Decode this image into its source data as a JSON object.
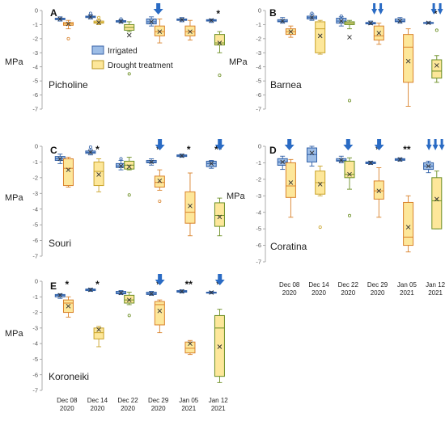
{
  "chart_data": {
    "type": "box",
    "y_label": "MPa",
    "y_ticks": [
      0,
      -1,
      -2,
      -3,
      -4,
      -5,
      -6,
      -7
    ],
    "ylim": [
      -7,
      0
    ],
    "dates": [
      {
        "line1": "Dec 08",
        "line2": "2020"
      },
      {
        "line1": "Dec 14",
        "line2": "2020"
      },
      {
        "line1": "Dec 22",
        "line2": "2020"
      },
      {
        "line1": "Dec 29",
        "line2": "2020"
      },
      {
        "line1": "Jan 05",
        "line2": "2021"
      },
      {
        "line1": "Jan 12",
        "line2": "2021"
      }
    ],
    "legend": [
      {
        "label": "Irrigated",
        "color": "#9dbde6",
        "stroke": "#3a63a8"
      },
      {
        "label": "Drought treatment",
        "color": "#fde79a",
        "stroke": "#b8951f"
      }
    ],
    "colors": {
      "irrigated_fill": "#9dbde6",
      "irrigated_stroke": "#2f5fa7",
      "drought_fill": "#fde79a",
      "drought_stroke_1": "#d9822b",
      "drought_stroke_2": "#c9a227",
      "drought_stroke_3": "#6b8e23",
      "arrow": "#2a6bc4"
    },
    "panels": [
      {
        "letter": "A",
        "name": "Picholine",
        "series": {
          "irrigated": [
            {
              "min": -0.75,
              "q1": -0.65,
              "median": -0.6,
              "q3": -0.55,
              "max": -0.45,
              "mean": -0.6,
              "outliers": []
            },
            {
              "min": -0.6,
              "q1": -0.5,
              "median": -0.45,
              "q3": -0.4,
              "max": -0.3,
              "mean": -0.45,
              "outliers": [
                -0.2
              ]
            },
            {
              "min": -0.9,
              "q1": -0.82,
              "median": -0.78,
              "q3": -0.72,
              "max": -0.65,
              "mean": -0.78,
              "outliers": [
                -0.6
              ]
            },
            {
              "min": -1.1,
              "q1": -0.95,
              "median": -0.8,
              "q3": -0.6,
              "max": -0.45,
              "mean": -0.8,
              "outliers": []
            },
            {
              "min": -0.8,
              "q1": -0.7,
              "median": -0.65,
              "q3": -0.6,
              "max": -0.5,
              "mean": -0.65,
              "outliers": []
            },
            {
              "min": -0.85,
              "q1": -0.75,
              "median": -0.7,
              "q3": -0.65,
              "max": -0.6,
              "mean": -0.7,
              "outliers": []
            }
          ],
          "drought": [
            {
              "min": -1.3,
              "q1": -1.05,
              "median": -0.95,
              "q3": -0.85,
              "max": -0.7,
              "mean": -0.95,
              "outliers": [
                -2.0
              ]
            },
            {
              "min": -1.0,
              "q1": -0.9,
              "median": -0.85,
              "q3": -0.75,
              "max": -0.65,
              "mean": -0.85,
              "outliers": [
                -0.5
              ]
            },
            {
              "min": -1.5,
              "q1": -1.4,
              "median": -1.2,
              "q3": -1.0,
              "max": -0.8,
              "mean": -1.75,
              "outliers": [
                -4.5
              ]
            },
            {
              "min": -2.3,
              "q1": -1.8,
              "median": -1.5,
              "q3": -1.1,
              "max": -0.6,
              "mean": -1.5,
              "outliers": []
            },
            {
              "min": -2.1,
              "q1": -1.8,
              "median": -1.5,
              "q3": -1.1,
              "max": -0.7,
              "mean": -1.5,
              "outliers": []
            },
            {
              "min": -3.0,
              "q1": -2.45,
              "median": -2.3,
              "q3": -1.7,
              "max": -1.5,
              "mean": -2.3,
              "outliers": [
                -4.6
              ]
            }
          ]
        },
        "stars": [
          "",
          "",
          "",
          "",
          "",
          "*"
        ],
        "arrows": [
          0,
          0,
          0,
          1,
          0,
          0
        ]
      },
      {
        "letter": "B",
        "name": "Barnea",
        "series": {
          "irrigated": [
            {
              "min": -0.9,
              "q1": -0.8,
              "median": -0.75,
              "q3": -0.65,
              "max": -0.5,
              "mean": -0.75,
              "outliers": []
            },
            {
              "min": -0.7,
              "q1": -0.6,
              "median": -0.5,
              "q3": -0.4,
              "max": -0.25,
              "mean": -0.5,
              "outliers": [
                -0.2
              ]
            },
            {
              "min": -1.1,
              "q1": -0.9,
              "median": -0.75,
              "q3": -0.55,
              "max": -0.45,
              "mean": -0.75,
              "outliers": [
                -0.4
              ]
            },
            {
              "min": -1.0,
              "q1": -0.95,
              "median": -0.9,
              "q3": -0.85,
              "max": -0.75,
              "mean": -0.9,
              "outliers": []
            },
            {
              "min": -0.9,
              "q1": -0.8,
              "median": -0.75,
              "q3": -0.6,
              "max": -0.5,
              "mean": -0.75,
              "outliers": []
            },
            {
              "min": -0.95,
              "q1": -0.9,
              "median": -0.88,
              "q3": -0.85,
              "max": -0.8,
              "mean": -0.88,
              "outliers": []
            }
          ],
          "drought": [
            {
              "min": -1.9,
              "q1": -1.7,
              "median": -1.5,
              "q3": -1.3,
              "max": -1.1,
              "mean": -1.5,
              "outliers": []
            },
            {
              "min": -3.1,
              "q1": -3.0,
              "median": -1.3,
              "q3": -0.8,
              "max": -0.7,
              "mean": -1.8,
              "outliers": []
            },
            {
              "min": -1.3,
              "q1": -1.0,
              "median": -0.9,
              "q3": -0.8,
              "max": -0.7,
              "mean": -1.9,
              "outliers": [
                -6.4
              ]
            },
            {
              "min": -2.4,
              "q1": -2.1,
              "median": -1.8,
              "q3": -1.1,
              "max": -0.9,
              "mean": -1.6,
              "outliers": []
            },
            {
              "min": -6.8,
              "q1": -5.1,
              "median": -2.6,
              "q3": -1.7,
              "max": -1.3,
              "mean": -3.6,
              "outliers": []
            },
            {
              "min": -5.1,
              "q1": -4.8,
              "median": -4.3,
              "q3": -3.5,
              "max": -3.2,
              "mean": -3.9,
              "outliers": [
                -1.4
              ]
            }
          ]
        },
        "stars": [
          "",
          "",
          "",
          "",
          "",
          "*"
        ],
        "arrows": [
          0,
          0,
          0,
          2,
          0,
          2
        ]
      },
      {
        "letter": "C",
        "name": "Souri",
        "series": {
          "irrigated": [
            {
              "min": -1.1,
              "q1": -0.9,
              "median": -0.8,
              "q3": -0.65,
              "max": -0.5,
              "mean": -0.8,
              "outliers": []
            },
            {
              "min": -0.55,
              "q1": -0.45,
              "median": -0.38,
              "q3": -0.3,
              "max": -0.2,
              "mean": -0.38,
              "outliers": [
                -0.05
              ]
            },
            {
              "min": -1.5,
              "q1": -1.35,
              "median": -1.25,
              "q3": -1.1,
              "max": -0.9,
              "mean": -1.25,
              "outliers": [
                -0.8
              ]
            },
            {
              "min": -1.2,
              "q1": -1.05,
              "median": -1.0,
              "q3": -0.9,
              "max": -0.8,
              "mean": -1.0,
              "outliers": []
            },
            {
              "min": -0.7,
              "q1": -0.65,
              "median": -0.6,
              "q3": -0.55,
              "max": -0.5,
              "mean": -0.6,
              "outliers": []
            },
            {
              "min": -1.4,
              "q1": -1.3,
              "median": -1.1,
              "q3": -0.95,
              "max": -0.9,
              "mean": -1.1,
              "outliers": []
            }
          ],
          "drought": [
            {
              "min": -2.6,
              "q1": -2.5,
              "median": -1.4,
              "q3": -0.8,
              "max": -0.7,
              "mean": -1.5,
              "outliers": []
            },
            {
              "min": -2.9,
              "q1": -2.5,
              "median": -1.6,
              "q3": -1.0,
              "max": -0.8,
              "mean": -1.8,
              "outliers": []
            },
            {
              "min": -1.5,
              "q1": -1.45,
              "median": -1.2,
              "q3": -0.95,
              "max": -0.7,
              "mean": -1.3,
              "outliers": [
                -3.1
              ]
            },
            {
              "min": -2.8,
              "q1": -2.6,
              "median": -2.3,
              "q3": -1.9,
              "max": -1.5,
              "mean": -2.2,
              "outliers": [
                -3.5
              ]
            },
            {
              "min": -5.7,
              "q1": -4.9,
              "median": -4.2,
              "q3": -2.9,
              "max": -1.7,
              "mean": -3.8,
              "outliers": []
            },
            {
              "min": -5.7,
              "q1": -5.1,
              "median": -4.4,
              "q3": -3.6,
              "max": -3.3,
              "mean": -4.5,
              "outliers": []
            }
          ]
        },
        "stars": [
          "",
          "*",
          "",
          "*",
          "*",
          "**"
        ],
        "arrows": [
          0,
          0,
          0,
          1,
          0,
          1
        ]
      },
      {
        "letter": "D",
        "name": "Coratina",
        "series": {
          "irrigated": [
            {
              "min": -1.4,
              "q1": -1.15,
              "median": -0.95,
              "q3": -0.75,
              "max": -0.6,
              "mean": -0.95,
              "outliers": []
            },
            {
              "min": -1.2,
              "q1": -0.95,
              "median": -0.5,
              "q3": -0.1,
              "max": 0.0,
              "mean": -0.4,
              "outliers": []
            },
            {
              "min": -1.0,
              "q1": -0.9,
              "median": -0.85,
              "q3": -0.75,
              "max": -0.6,
              "mean": -0.85,
              "outliers": []
            },
            {
              "min": -1.1,
              "q1": -1.05,
              "median": -1.0,
              "q3": -0.95,
              "max": -0.9,
              "mean": -1.0,
              "outliers": []
            },
            {
              "min": -0.9,
              "q1": -0.85,
              "median": -0.8,
              "q3": -0.75,
              "max": -0.7,
              "mean": -0.8,
              "outliers": []
            },
            {
              "min": -1.6,
              "q1": -1.4,
              "median": -1.2,
              "q3": -1.0,
              "max": -0.9,
              "mean": -1.2,
              "outliers": []
            }
          ],
          "drought": [
            {
              "min": -4.3,
              "q1": -3.1,
              "median": -2.4,
              "q3": -1.0,
              "max": -0.8,
              "mean": -2.2,
              "outliers": []
            },
            {
              "min": -3.0,
              "q1": -2.9,
              "median": -2.2,
              "q3": -1.5,
              "max": -1.2,
              "mean": -2.3,
              "outliers": [
                -4.9
              ]
            },
            {
              "min": -2.6,
              "q1": -1.9,
              "median": -1.7,
              "q3": -0.9,
              "max": -0.7,
              "mean": -1.7,
              "outliers": [
                -4.2
              ]
            },
            {
              "min": -4.3,
              "q1": -3.2,
              "median": -2.7,
              "q3": -2.1,
              "max": -1.3,
              "mean": -2.7,
              "outliers": []
            },
            {
              "min": -6.4,
              "q1": -6.0,
              "median": -5.5,
              "q3": -3.4,
              "max": -3.0,
              "mean": -4.9,
              "outliers": []
            },
            {
              "min": -5.0,
              "q1": -5.0,
              "median": -3.3,
              "q3": -1.9,
              "max": -1.5,
              "mean": -3.2,
              "outliers": []
            }
          ]
        },
        "stars": [
          "",
          "",
          "",
          "*",
          "**",
          ""
        ],
        "arrows": [
          1,
          0,
          1,
          1,
          0,
          3
        ]
      },
      {
        "letter": "E",
        "name": "Koroneiki",
        "series": {
          "irrigated": [
            {
              "min": -1.1,
              "q1": -1.0,
              "median": -0.9,
              "q3": -0.85,
              "max": -0.8,
              "mean": -0.9,
              "outliers": []
            },
            {
              "min": -0.65,
              "q1": -0.6,
              "median": -0.55,
              "q3": -0.5,
              "max": -0.45,
              "mean": -0.55,
              "outliers": []
            },
            {
              "min": -0.85,
              "q1": -0.8,
              "median": -0.75,
              "q3": -0.65,
              "max": -0.6,
              "mean": -0.75,
              "outliers": []
            },
            {
              "min": -0.9,
              "q1": -0.85,
              "median": -0.8,
              "q3": -0.7,
              "max": -0.65,
              "mean": -0.8,
              "outliers": []
            },
            {
              "min": -0.75,
              "q1": -0.7,
              "median": -0.65,
              "q3": -0.6,
              "max": -0.55,
              "mean": -0.65,
              "outliers": []
            },
            {
              "min": -0.8,
              "q1": -0.75,
              "median": -0.72,
              "q3": -0.7,
              "max": -0.65,
              "mean": -0.72,
              "outliers": []
            }
          ],
          "drought": [
            {
              "min": -2.3,
              "q1": -2.0,
              "median": -1.4,
              "q3": -1.2,
              "max": -1.0,
              "mean": -1.6,
              "outliers": []
            },
            {
              "min": -4.2,
              "q1": -3.7,
              "median": -3.3,
              "q3": -3.0,
              "max": -2.9,
              "mean": -3.1,
              "outliers": []
            },
            {
              "min": -1.5,
              "q1": -1.4,
              "median": -1.2,
              "q3": -0.9,
              "max": -0.7,
              "mean": -1.2,
              "outliers": [
                -2.2
              ]
            },
            {
              "min": -3.3,
              "q1": -2.8,
              "median": -1.5,
              "q3": -1.3,
              "max": -1.2,
              "mean": -1.9,
              "outliers": []
            },
            {
              "min": -4.7,
              "q1": -4.6,
              "median": -4.3,
              "q3": -3.9,
              "max": -3.8,
              "mean": -4.0,
              "outliers": []
            },
            {
              "min": -6.5,
              "q1": -6.1,
              "median": -3.0,
              "q3": -2.2,
              "max": -1.8,
              "mean": -4.2,
              "outliers": []
            }
          ]
        },
        "stars": [
          "*",
          "*",
          "",
          "*",
          "**",
          "*"
        ],
        "arrows": [
          0,
          0,
          0,
          1,
          0,
          1
        ]
      }
    ]
  }
}
